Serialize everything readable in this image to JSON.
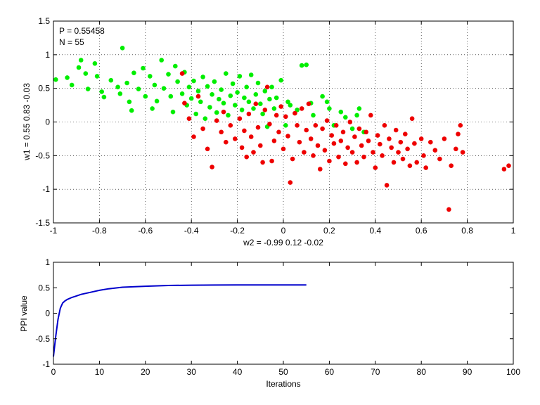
{
  "chart_data": [
    {
      "type": "scatter",
      "xlabel": "w2 = -0.99  0.12  -0.02",
      "ylabel": "w1 = 0.55  0.83  -0.03",
      "xlim": [
        -1,
        1
      ],
      "ylim": [
        -1.5,
        1.5
      ],
      "xticks": [
        -1,
        -0.8,
        -0.6,
        -0.4,
        -0.2,
        0,
        0.2,
        0.4,
        0.6,
        0.8,
        1
      ],
      "yticks": [
        -1.5,
        -1,
        -0.5,
        0,
        0.5,
        1,
        1.5
      ],
      "xtick_labels": [
        "-1",
        "-0.8",
        "-0.6",
        "-0.4",
        "-0.2",
        "0",
        "0.2",
        "0.4",
        "0.6",
        "0.8",
        "1"
      ],
      "ytick_labels": [
        "-1.5",
        "-1",
        "-0.5",
        "0",
        "0.5",
        "1",
        "1.5"
      ],
      "grid": true,
      "annotations": [
        "P = 0.55458",
        "N = 55"
      ],
      "series": [
        {
          "color": "#00ee00",
          "points": [
            [
              -0.99,
              0.63
            ],
            [
              -0.94,
              0.66
            ],
            [
              -0.92,
              0.55
            ],
            [
              -0.89,
              0.81
            ],
            [
              -0.88,
              0.92
            ],
            [
              -0.86,
              0.72
            ],
            [
              -0.85,
              0.49
            ],
            [
              -0.82,
              0.87
            ],
            [
              -0.81,
              0.68
            ],
            [
              -0.79,
              0.45
            ],
            [
              -0.78,
              0.37
            ],
            [
              -0.75,
              0.62
            ],
            [
              -0.72,
              0.52
            ],
            [
              -0.71,
              0.42
            ],
            [
              -0.7,
              1.1
            ],
            [
              -0.68,
              0.58
            ],
            [
              -0.67,
              0.3
            ],
            [
              -0.66,
              0.17
            ],
            [
              -0.65,
              0.73
            ],
            [
              -0.63,
              0.49
            ],
            [
              -0.61,
              0.8
            ],
            [
              -0.6,
              0.38
            ],
            [
              -0.58,
              0.68
            ],
            [
              -0.57,
              0.2
            ],
            [
              -0.56,
              0.55
            ],
            [
              -0.55,
              0.31
            ],
            [
              -0.53,
              0.92
            ],
            [
              -0.52,
              0.5
            ],
            [
              -0.5,
              0.71
            ],
            [
              -0.49,
              0.38
            ],
            [
              -0.48,
              0.15
            ],
            [
              -0.47,
              0.83
            ],
            [
              -0.46,
              0.6
            ],
            [
              -0.44,
              0.42
            ],
            [
              -0.43,
              0.74
            ],
            [
              -0.42,
              0.25
            ],
            [
              -0.41,
              0.52
            ],
            [
              -0.4,
              0.35
            ],
            [
              -0.39,
              0.61
            ],
            [
              -0.38,
              0.12
            ],
            [
              -0.37,
              0.46
            ],
            [
              -0.36,
              0.3
            ],
            [
              -0.35,
              0.67
            ],
            [
              -0.34,
              0.05
            ],
            [
              -0.33,
              0.53
            ],
            [
              -0.32,
              0.22
            ],
            [
              -0.31,
              0.41
            ],
            [
              -0.3,
              0.6
            ],
            [
              -0.29,
              0.14
            ],
            [
              -0.28,
              0.34
            ],
            [
              -0.27,
              0.48
            ],
            [
              -0.26,
              0.28
            ],
            [
              -0.25,
              0.72
            ],
            [
              -0.24,
              0.1
            ],
            [
              -0.23,
              0.39
            ],
            [
              -0.22,
              0.57
            ],
            [
              -0.21,
              0.25
            ],
            [
              -0.2,
              0.44
            ],
            [
              -0.19,
              0.68
            ],
            [
              -0.18,
              0.18
            ],
            [
              -0.17,
              0.36
            ],
            [
              -0.16,
              0.52
            ],
            [
              -0.15,
              0.3
            ],
            [
              -0.14,
              0.7
            ],
            [
              -0.13,
              0.2
            ],
            [
              -0.12,
              0.41
            ],
            [
              -0.11,
              0.58
            ],
            [
              -0.1,
              0.27
            ],
            [
              -0.09,
              0.12
            ],
            [
              -0.08,
              0.46
            ],
            [
              -0.07,
              -0.07
            ],
            [
              -0.06,
              0.34
            ],
            [
              -0.05,
              0.52
            ],
            [
              -0.04,
              0.2
            ],
            [
              -0.03,
              0.36
            ],
            [
              -0.01,
              0.62
            ],
            [
              0.01,
              -0.05
            ],
            [
              0.02,
              0.3
            ],
            [
              0.03,
              0.25
            ],
            [
              0.06,
              0.18
            ],
            [
              0.08,
              0.84
            ],
            [
              0.1,
              0.85
            ],
            [
              0.12,
              0.28
            ],
            [
              0.13,
              0.1
            ],
            [
              0.17,
              0.38
            ],
            [
              0.19,
              0.3
            ],
            [
              0.2,
              0.2
            ],
            [
              0.22,
              -0.05
            ],
            [
              0.25,
              0.15
            ],
            [
              0.27,
              0.07
            ],
            [
              0.3,
              -0.1
            ],
            [
              0.32,
              0.1
            ],
            [
              0.33,
              0.2
            ],
            [
              0.35,
              -0.15
            ]
          ]
        },
        {
          "color": "#ee0000",
          "points": [
            [
              -0.44,
              0.72
            ],
            [
              -0.43,
              0.28
            ],
            [
              -0.41,
              0.05
            ],
            [
              -0.39,
              -0.22
            ],
            [
              -0.37,
              0.38
            ],
            [
              -0.35,
              -0.1
            ],
            [
              -0.33,
              -0.4
            ],
            [
              -0.31,
              -0.67
            ],
            [
              -0.29,
              0.02
            ],
            [
              -0.27,
              -0.15
            ],
            [
              -0.26,
              0.15
            ],
            [
              -0.25,
              -0.3
            ],
            [
              -0.23,
              -0.05
            ],
            [
              -0.21,
              -0.25
            ],
            [
              -0.19,
              0.05
            ],
            [
              -0.18,
              -0.38
            ],
            [
              -0.17,
              -0.13
            ],
            [
              -0.16,
              -0.52
            ],
            [
              -0.15,
              0.12
            ],
            [
              -0.14,
              -0.22
            ],
            [
              -0.13,
              -0.45
            ],
            [
              -0.12,
              0.27
            ],
            [
              -0.11,
              -0.08
            ],
            [
              -0.1,
              -0.35
            ],
            [
              -0.09,
              -0.6
            ],
            [
              -0.08,
              0.18
            ],
            [
              -0.07,
              0.52
            ],
            [
              -0.06,
              -0.03
            ],
            [
              -0.05,
              -0.58
            ],
            [
              -0.04,
              -0.28
            ],
            [
              -0.03,
              0.1
            ],
            [
              -0.02,
              -0.15
            ],
            [
              -0.01,
              0.23
            ],
            [
              0.0,
              -0.4
            ],
            [
              0.01,
              0.08
            ],
            [
              0.02,
              -0.21
            ],
            [
              0.03,
              -0.9
            ],
            [
              0.04,
              -0.55
            ],
            [
              0.05,
              0.13
            ],
            [
              0.06,
              -0.05
            ],
            [
              0.07,
              -0.3
            ],
            [
              0.08,
              0.2
            ],
            [
              0.09,
              -0.45
            ],
            [
              0.1,
              -0.12
            ],
            [
              0.11,
              0.27
            ],
            [
              0.12,
              -0.25
            ],
            [
              0.13,
              -0.5
            ],
            [
              0.14,
              -0.05
            ],
            [
              0.15,
              -0.35
            ],
            [
              0.16,
              -0.7
            ],
            [
              0.17,
              -0.1
            ],
            [
              0.18,
              -0.42
            ],
            [
              0.19,
              0.02
            ],
            [
              0.2,
              -0.58
            ],
            [
              0.21,
              -0.2
            ],
            [
              0.22,
              -0.32
            ],
            [
              0.23,
              -0.05
            ],
            [
              0.24,
              -0.52
            ],
            [
              0.25,
              -0.28
            ],
            [
              0.26,
              -0.15
            ],
            [
              0.27,
              -0.62
            ],
            [
              0.28,
              -0.38
            ],
            [
              0.29,
              0.0
            ],
            [
              0.3,
              -0.45
            ],
            [
              0.31,
              -0.22
            ],
            [
              0.32,
              -0.6
            ],
            [
              0.33,
              -0.1
            ],
            [
              0.34,
              -0.35
            ],
            [
              0.35,
              -0.52
            ],
            [
              0.36,
              -0.15
            ],
            [
              0.37,
              -0.28
            ],
            [
              0.38,
              0.1
            ],
            [
              0.39,
              -0.45
            ],
            [
              0.4,
              -0.68
            ],
            [
              0.41,
              -0.2
            ],
            [
              0.42,
              -0.33
            ],
            [
              0.43,
              -0.5
            ],
            [
              0.44,
              -0.05
            ],
            [
              0.45,
              -0.94
            ],
            [
              0.46,
              -0.25
            ],
            [
              0.47,
              -0.38
            ],
            [
              0.48,
              -0.6
            ],
            [
              0.49,
              -0.12
            ],
            [
              0.5,
              -0.45
            ],
            [
              0.51,
              -0.3
            ],
            [
              0.52,
              -0.55
            ],
            [
              0.53,
              -0.18
            ],
            [
              0.54,
              -0.4
            ],
            [
              0.55,
              -0.65
            ],
            [
              0.56,
              0.05
            ],
            [
              0.57,
              -0.32
            ],
            [
              0.58,
              -0.6
            ],
            [
              0.6,
              -0.25
            ],
            [
              0.61,
              -0.5
            ],
            [
              0.62,
              -0.68
            ],
            [
              0.64,
              -0.3
            ],
            [
              0.66,
              -0.42
            ],
            [
              0.68,
              -0.55
            ],
            [
              0.7,
              -0.25
            ],
            [
              0.72,
              -1.3
            ],
            [
              0.73,
              -0.65
            ],
            [
              0.75,
              -0.4
            ],
            [
              0.76,
              -0.18
            ],
            [
              0.77,
              -0.05
            ],
            [
              0.78,
              -0.45
            ],
            [
              0.96,
              -0.7
            ],
            [
              0.98,
              -0.65
            ]
          ]
        }
      ]
    },
    {
      "type": "line",
      "xlabel": "Iterations",
      "ylabel": "PPI value",
      "xlim": [
        0,
        100
      ],
      "ylim": [
        -1,
        1
      ],
      "xticks": [
        0,
        10,
        20,
        30,
        40,
        50,
        60,
        70,
        80,
        90,
        100
      ],
      "yticks": [
        -1,
        -0.5,
        0,
        0.5,
        1
      ],
      "xtick_labels": [
        "0",
        "10",
        "20",
        "30",
        "40",
        "50",
        "60",
        "70",
        "80",
        "90",
        "100"
      ],
      "ytick_labels": [
        "-1",
        "-0.5",
        "0",
        "0.5",
        "1"
      ],
      "grid": false,
      "series": [
        {
          "color": "#0000cc",
          "x": [
            0,
            0.5,
            1,
            1.5,
            2,
            2.5,
            3,
            4,
            5,
            6,
            8,
            10,
            12,
            15,
            20,
            25,
            30,
            35,
            40,
            45,
            50,
            55
          ],
          "y": [
            -0.85,
            -0.45,
            -0.12,
            0.1,
            0.2,
            0.24,
            0.27,
            0.31,
            0.34,
            0.37,
            0.41,
            0.45,
            0.48,
            0.51,
            0.53,
            0.545,
            0.55,
            0.553,
            0.554,
            0.555,
            0.555,
            0.555
          ]
        }
      ]
    }
  ]
}
